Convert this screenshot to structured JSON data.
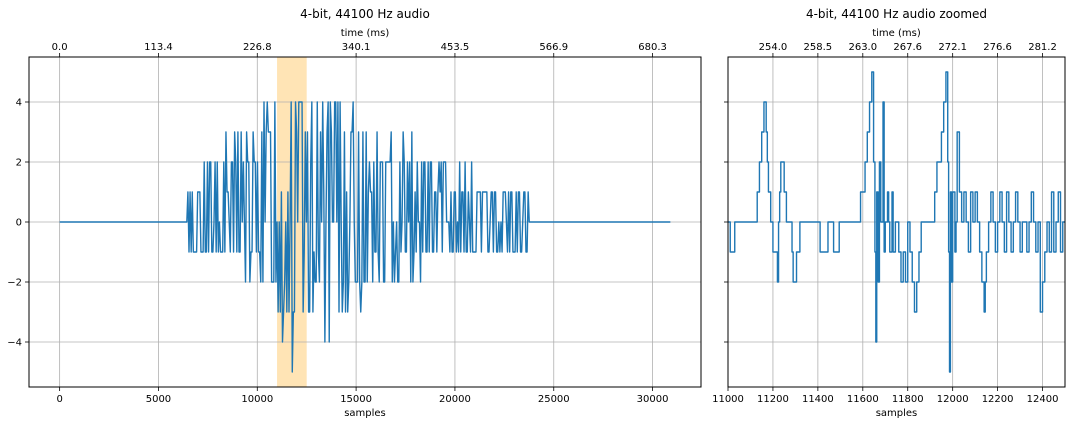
{
  "chart_data": [
    {
      "type": "line",
      "title": "4-bit, 44100 Hz audio",
      "xlabel": "samples",
      "x2label": "time (ms)",
      "xlim": [
        -1550,
        32450
      ],
      "ylim": [
        -5.5,
        5.5
      ],
      "xticks": [
        0,
        5000,
        10000,
        15000,
        20000,
        25000,
        30000
      ],
      "xtick_labels": [
        "0",
        "5000",
        "10000",
        "15000",
        "20000",
        "25000",
        "30000"
      ],
      "yticks": [
        -4,
        -2,
        0,
        2,
        4
      ],
      "ytick_labels": [
        "−4",
        "−2",
        "0",
        "2",
        "4"
      ],
      "x2ticks": [
        0,
        5000,
        10000,
        15000,
        20000,
        25000,
        30000
      ],
      "x2tick_labels": [
        "0.0",
        "113.4",
        "226.8",
        "340.1",
        "453.5",
        "566.9",
        "680.3"
      ],
      "highlight_span": [
        11000,
        12500
      ],
      "highlight_color": "#ffe4b5",
      "grid": true,
      "series": [
        {
          "color": "#1f77b4",
          "x_range": [
            0,
            30900
          ],
          "envelope": [
            [
              0,
              0,
              0
            ],
            [
              6400,
              0,
              0
            ],
            [
              6500,
              -1,
              1
            ],
            [
              7500,
              -1,
              2
            ],
            [
              8500,
              -1,
              3
            ],
            [
              9500,
              -2,
              3
            ],
            [
              10500,
              -2,
              4
            ],
            [
              11000,
              -3,
              4
            ],
            [
              11500,
              -4,
              5
            ],
            [
              12000,
              -5,
              5
            ],
            [
              12500,
              -4,
              4
            ],
            [
              13000,
              -3,
              4
            ],
            [
              13500,
              -4,
              5
            ],
            [
              14000,
              -4,
              5
            ],
            [
              14500,
              -3,
              5
            ],
            [
              15000,
              -3,
              4
            ],
            [
              15500,
              -3,
              4
            ],
            [
              16000,
              -2,
              3
            ],
            [
              16500,
              -2,
              3
            ],
            [
              17000,
              -2,
              3
            ],
            [
              18000,
              -2,
              3
            ],
            [
              19000,
              -1,
              2
            ],
            [
              20000,
              -1,
              2
            ],
            [
              21000,
              -1,
              2
            ],
            [
              22000,
              -1,
              1
            ],
            [
              23700,
              -1,
              1
            ],
            [
              23800,
              0,
              0
            ],
            [
              30900,
              0,
              0
            ]
          ]
        }
      ]
    },
    {
      "type": "line",
      "title": "4-bit, 44100 Hz audio zoomed",
      "xlabel": "samples",
      "x2label": "time (ms)",
      "xlim": [
        11000,
        12500
      ],
      "ylim": [
        -5.5,
        5.5
      ],
      "xticks": [
        11000,
        11200,
        11400,
        11600,
        11800,
        12000,
        12200,
        12400
      ],
      "xtick_labels": [
        "11000",
        "11200",
        "11400",
        "11600",
        "11800",
        "12000",
        "12200",
        "12400"
      ],
      "x2ticks": [
        11200,
        11400,
        11600,
        11800,
        12000,
        12200,
        12400
      ],
      "x2tick_labels": [
        "254.0",
        "258.5",
        "263.0",
        "267.6",
        "272.1",
        "276.6",
        "281.2"
      ],
      "grid": true,
      "series": [
        {
          "color": "#1f77b4",
          "points": [
            [
              11000,
              0
            ],
            [
              11010,
              -1
            ],
            [
              11030,
              0
            ],
            [
              11120,
              0
            ],
            [
              11130,
              1
            ],
            [
              11140,
              2
            ],
            [
              11150,
              3
            ],
            [
              11160,
              4
            ],
            [
              11170,
              3
            ],
            [
              11175,
              2
            ],
            [
              11180,
              1
            ],
            [
              11190,
              0
            ],
            [
              11200,
              -1
            ],
            [
              11210,
              -1
            ],
            [
              11220,
              -2
            ],
            [
              11225,
              0
            ],
            [
              11230,
              1
            ],
            [
              11235,
              2
            ],
            [
              11245,
              2
            ],
            [
              11250,
              1
            ],
            [
              11260,
              0
            ],
            [
              11275,
              0
            ],
            [
              11285,
              -1
            ],
            [
              11290,
              -2
            ],
            [
              11300,
              -2
            ],
            [
              11305,
              -1
            ],
            [
              11315,
              -1
            ],
            [
              11320,
              0
            ],
            [
              11400,
              0
            ],
            [
              11410,
              -1
            ],
            [
              11440,
              -1
            ],
            [
              11445,
              0
            ],
            [
              11465,
              0
            ],
            [
              11470,
              -1
            ],
            [
              11490,
              -1
            ],
            [
              11495,
              0
            ],
            [
              11580,
              0
            ],
            [
              11590,
              1
            ],
            [
              11600,
              1
            ],
            [
              11610,
              2
            ],
            [
              11620,
              3
            ],
            [
              11630,
              4
            ],
            [
              11640,
              5
            ],
            [
              11648,
              2
            ],
            [
              11654,
              -1
            ],
            [
              11658,
              -4
            ],
            [
              11662,
              1
            ],
            [
              11668,
              -2
            ],
            [
              11674,
              2
            ],
            [
              11680,
              0
            ],
            [
              11690,
              4
            ],
            [
              11695,
              -1
            ],
            [
              11700,
              0
            ],
            [
              11710,
              1
            ],
            [
              11715,
              0
            ],
            [
              11720,
              -1
            ],
            [
              11730,
              1
            ],
            [
              11735,
              -1
            ],
            [
              11745,
              0
            ],
            [
              11760,
              -1
            ],
            [
              11770,
              -2
            ],
            [
              11780,
              -1
            ],
            [
              11790,
              -2
            ],
            [
              11800,
              0
            ],
            [
              11810,
              -1
            ],
            [
              11820,
              -2
            ],
            [
              11830,
              -3
            ],
            [
              11840,
              -2
            ],
            [
              11850,
              -1
            ],
            [
              11860,
              0
            ],
            [
              11880,
              0
            ],
            [
              11890,
              0
            ],
            [
              11900,
              0
            ],
            [
              11910,
              0
            ],
            [
              11920,
              1
            ],
            [
              11930,
              2
            ],
            [
              11940,
              2
            ],
            [
              11950,
              3
            ],
            [
              11960,
              4
            ],
            [
              11970,
              5
            ],
            [
              11978,
              2
            ],
            [
              11982,
              -1
            ],
            [
              11986,
              -5
            ],
            [
              11990,
              1
            ],
            [
              11995,
              -2
            ],
            [
              12000,
              1
            ],
            [
              12010,
              -1
            ],
            [
              12015,
              0
            ],
            [
              12020,
              3
            ],
            [
              12030,
              1
            ],
            [
              12040,
              0
            ],
            [
              12050,
              1
            ],
            [
              12060,
              0
            ],
            [
              12070,
              -1
            ],
            [
              12080,
              1
            ],
            [
              12090,
              0
            ],
            [
              12100,
              1
            ],
            [
              12110,
              0
            ],
            [
              12120,
              -1
            ],
            [
              12130,
              -2
            ],
            [
              12140,
              -3
            ],
            [
              12145,
              -2
            ],
            [
              12150,
              -1
            ],
            [
              12160,
              0
            ],
            [
              12170,
              1
            ],
            [
              12180,
              0
            ],
            [
              12190,
              -1
            ],
            [
              12200,
              0
            ],
            [
              12210,
              1
            ],
            [
              12220,
              0
            ],
            [
              12230,
              -1
            ],
            [
              12240,
              1
            ],
            [
              12250,
              0
            ],
            [
              12260,
              -1
            ],
            [
              12270,
              0
            ],
            [
              12280,
              1
            ],
            [
              12290,
              0
            ],
            [
              12300,
              -1
            ],
            [
              12310,
              0
            ],
            [
              12320,
              0
            ],
            [
              12330,
              -1
            ],
            [
              12340,
              0
            ],
            [
              12350,
              1
            ],
            [
              12360,
              0
            ],
            [
              12370,
              -1
            ],
            [
              12380,
              0
            ],
            [
              12390,
              -3
            ],
            [
              12400,
              -2
            ],
            [
              12410,
              -1
            ],
            [
              12420,
              0
            ],
            [
              12430,
              -1
            ],
            [
              12440,
              1
            ],
            [
              12450,
              -1
            ],
            [
              12460,
              0
            ],
            [
              12470,
              1
            ],
            [
              12480,
              -1
            ],
            [
              12490,
              0
            ],
            [
              12500,
              0
            ]
          ]
        }
      ]
    }
  ]
}
